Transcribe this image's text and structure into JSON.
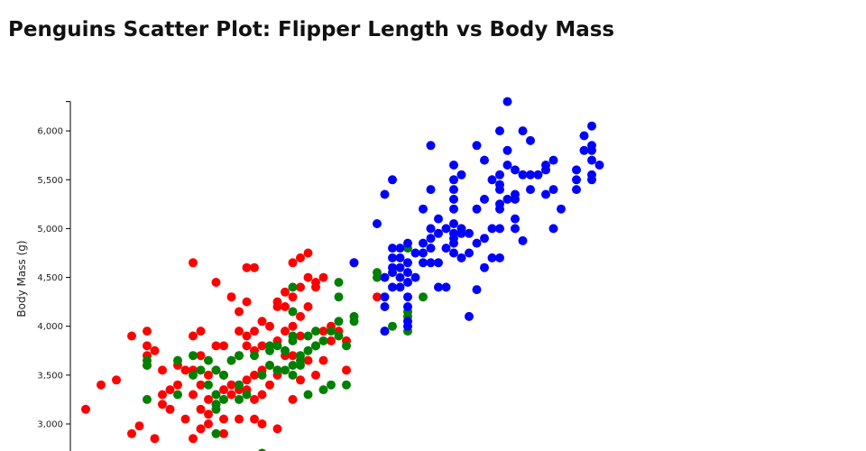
{
  "title": "Penguins Scatter Plot: Flipper Length vs Body Mass",
  "chart_data": {
    "type": "scatter",
    "title": "Penguins Scatter Plot: Flipper Length vs Body Mass",
    "xlabel": "",
    "ylabel": "Body Mass (g)",
    "xlim": [
      168,
      236
    ],
    "ylim": [
      2700,
      6300
    ],
    "y_ticks": [
      3000,
      3500,
      4000,
      4500,
      5000,
      5500,
      6000
    ],
    "y_tick_labels": [
      "3,000",
      "3,500",
      "4,000",
      "4,500",
      "5,000",
      "5,500",
      "6,000"
    ],
    "grid": false,
    "legend": "none",
    "series": [
      {
        "color": "#ff0000",
        "points": [
          [
            170,
            3150
          ],
          [
            172,
            3400
          ],
          [
            174,
            3450
          ],
          [
            176,
            3900
          ],
          [
            176,
            2900
          ],
          [
            177,
            2980
          ],
          [
            178,
            3950
          ],
          [
            178,
            3800
          ],
          [
            178,
            3700
          ],
          [
            178,
            3600
          ],
          [
            179,
            3750
          ],
          [
            179,
            2850
          ],
          [
            180,
            3300
          ],
          [
            180,
            3550
          ],
          [
            180,
            3200
          ],
          [
            181,
            3150
          ],
          [
            181,
            3350
          ],
          [
            182,
            3400
          ],
          [
            182,
            3600
          ],
          [
            183,
            3550
          ],
          [
            183,
            3050
          ],
          [
            184,
            4650
          ],
          [
            184,
            3900
          ],
          [
            184,
            3550
          ],
          [
            184,
            3300
          ],
          [
            184,
            2850
          ],
          [
            185,
            3950
          ],
          [
            185,
            3700
          ],
          [
            185,
            3400
          ],
          [
            185,
            3150
          ],
          [
            185,
            2950
          ],
          [
            186,
            3500
          ],
          [
            186,
            3250
          ],
          [
            186,
            3100
          ],
          [
            186,
            3000
          ],
          [
            187,
            4450
          ],
          [
            187,
            3800
          ],
          [
            187,
            3550
          ],
          [
            187,
            3300
          ],
          [
            187,
            3200
          ],
          [
            188,
            3800
          ],
          [
            188,
            3500
          ],
          [
            188,
            3350
          ],
          [
            188,
            3050
          ],
          [
            188,
            2900
          ],
          [
            189,
            4300
          ],
          [
            189,
            3400
          ],
          [
            189,
            3300
          ],
          [
            190,
            4150
          ],
          [
            190,
            3950
          ],
          [
            190,
            3700
          ],
          [
            190,
            3350
          ],
          [
            190,
            3050
          ],
          [
            191,
            4600
          ],
          [
            191,
            4250
          ],
          [
            191,
            3900
          ],
          [
            191,
            3800
          ],
          [
            191,
            3450
          ],
          [
            191,
            3350
          ],
          [
            192,
            4600
          ],
          [
            192,
            3950
          ],
          [
            192,
            3750
          ],
          [
            192,
            3500
          ],
          [
            192,
            3250
          ],
          [
            192,
            3050
          ],
          [
            193,
            4050
          ],
          [
            193,
            3800
          ],
          [
            193,
            3550
          ],
          [
            193,
            3300
          ],
          [
            193,
            3000
          ],
          [
            194,
            4000
          ],
          [
            194,
            3600
          ],
          [
            194,
            3400
          ],
          [
            195,
            4250
          ],
          [
            195,
            4200
          ],
          [
            195,
            3850
          ],
          [
            195,
            3550
          ],
          [
            195,
            3500
          ],
          [
            195,
            2950
          ],
          [
            196,
            4350
          ],
          [
            196,
            4200
          ],
          [
            196,
            3950
          ],
          [
            196,
            3700
          ],
          [
            197,
            4650
          ],
          [
            197,
            4300
          ],
          [
            197,
            4000
          ],
          [
            197,
            3700
          ],
          [
            197,
            3250
          ],
          [
            198,
            4700
          ],
          [
            198,
            4400
          ],
          [
            198,
            4100
          ],
          [
            198,
            3900
          ],
          [
            198,
            3450
          ],
          [
            199,
            4750
          ],
          [
            199,
            4500
          ],
          [
            199,
            4200
          ],
          [
            199,
            3650
          ],
          [
            200,
            4450
          ],
          [
            200,
            4400
          ],
          [
            200,
            3800
          ],
          [
            200,
            3500
          ],
          [
            201,
            4500
          ],
          [
            201,
            3950
          ],
          [
            201,
            3650
          ],
          [
            202,
            4000
          ],
          [
            202,
            3850
          ],
          [
            203,
            3950
          ],
          [
            204,
            3550
          ],
          [
            204,
            3850
          ],
          [
            205,
            4650
          ],
          [
            208,
            4300
          ]
        ]
      },
      {
        "color": "#008000",
        "points": [
          [
            178,
            3250
          ],
          [
            178,
            3650
          ],
          [
            178,
            3600
          ],
          [
            182,
            3650
          ],
          [
            182,
            3300
          ],
          [
            184,
            3500
          ],
          [
            184,
            3700
          ],
          [
            185,
            3550
          ],
          [
            186,
            3400
          ],
          [
            186,
            3650
          ],
          [
            187,
            3150
          ],
          [
            187,
            3200
          ],
          [
            187,
            2900
          ],
          [
            187,
            3300
          ],
          [
            187,
            3550
          ],
          [
            188,
            3250
          ],
          [
            188,
            3500
          ],
          [
            189,
            3650
          ],
          [
            190,
            3250
          ],
          [
            190,
            3400
          ],
          [
            190,
            3700
          ],
          [
            191,
            3300
          ],
          [
            192,
            3700
          ],
          [
            193,
            2700
          ],
          [
            193,
            3500
          ],
          [
            194,
            3750
          ],
          [
            194,
            3600
          ],
          [
            194,
            3800
          ],
          [
            195,
            3800
          ],
          [
            195,
            3550
          ],
          [
            196,
            3750
          ],
          [
            196,
            3550
          ],
          [
            197,
            3850
          ],
          [
            197,
            3900
          ],
          [
            197,
            3600
          ],
          [
            197,
            3500
          ],
          [
            197,
            4150
          ],
          [
            197,
            4400
          ],
          [
            198,
            3650
          ],
          [
            198,
            3700
          ],
          [
            198,
            3600
          ],
          [
            199,
            3750
          ],
          [
            199,
            3300
          ],
          [
            199,
            3900
          ],
          [
            200,
            3800
          ],
          [
            200,
            3950
          ],
          [
            201,
            3350
          ],
          [
            201,
            3850
          ],
          [
            202,
            3400
          ],
          [
            202,
            3950
          ],
          [
            203,
            4450
          ],
          [
            203,
            4300
          ],
          [
            203,
            3900
          ],
          [
            203,
            4050
          ],
          [
            204,
            3400
          ],
          [
            204,
            3800
          ],
          [
            205,
            4050
          ],
          [
            205,
            4100
          ],
          [
            208,
            4550
          ],
          [
            208,
            4500
          ],
          [
            209,
            3950
          ],
          [
            210,
            4000
          ],
          [
            212,
            4800
          ],
          [
            212,
            4150
          ],
          [
            212,
            4100
          ],
          [
            212,
            3950
          ],
          [
            214,
            4300
          ]
        ]
      },
      {
        "color": "#0000ff",
        "points": [
          [
            205,
            4650
          ],
          [
            208,
            5050
          ],
          [
            209,
            4500
          ],
          [
            209,
            5350
          ],
          [
            209,
            4300
          ],
          [
            209,
            4200
          ],
          [
            209,
            3950
          ],
          [
            210,
            5500
          ],
          [
            210,
            4550
          ],
          [
            210,
            4800
          ],
          [
            210,
            4700
          ],
          [
            210,
            4600
          ],
          [
            210,
            4400
          ],
          [
            211,
            4400
          ],
          [
            211,
            4500
          ],
          [
            211,
            4600
          ],
          [
            211,
            4700
          ],
          [
            211,
            4800
          ],
          [
            212,
            4850
          ],
          [
            212,
            4650
          ],
          [
            212,
            4550
          ],
          [
            212,
            4450
          ],
          [
            212,
            4300
          ],
          [
            212,
            4200
          ],
          [
            212,
            4050
          ],
          [
            212,
            4000
          ],
          [
            213,
            4750
          ],
          [
            213,
            4500
          ],
          [
            214,
            4750
          ],
          [
            214,
            4650
          ],
          [
            214,
            4850
          ],
          [
            214,
            5200
          ],
          [
            215,
            4900
          ],
          [
            215,
            4800
          ],
          [
            215,
            4650
          ],
          [
            215,
            5000
          ],
          [
            215,
            5400
          ],
          [
            215,
            5850
          ],
          [
            216,
            4400
          ],
          [
            216,
            4650
          ],
          [
            216,
            4950
          ],
          [
            216,
            5100
          ],
          [
            217,
            4400
          ],
          [
            217,
            4800
          ],
          [
            217,
            5000
          ],
          [
            218,
            5200
          ],
          [
            218,
            5050
          ],
          [
            218,
            4950
          ],
          [
            218,
            4900
          ],
          [
            218,
            4850
          ],
          [
            218,
            5400
          ],
          [
            218,
            5300
          ],
          [
            218,
            5500
          ],
          [
            218,
            5650
          ],
          [
            218,
            4750
          ],
          [
            219,
            4700
          ],
          [
            219,
            4950
          ],
          [
            219,
            5000
          ],
          [
            219,
            5550
          ],
          [
            220,
            4100
          ],
          [
            220,
            4750
          ],
          [
            220,
            4950
          ],
          [
            221,
            5200
          ],
          [
            221,
            5850
          ],
          [
            221,
            4850
          ],
          [
            221,
            4375
          ],
          [
            222,
            5700
          ],
          [
            222,
            4600
          ],
          [
            222,
            4900
          ],
          [
            222,
            5300
          ],
          [
            223,
            5000
          ],
          [
            223,
            4700
          ],
          [
            223,
            5500
          ],
          [
            224,
            5400
          ],
          [
            224,
            5250
          ],
          [
            224,
            5000
          ],
          [
            224,
            5200
          ],
          [
            224,
            5450
          ],
          [
            224,
            5550
          ],
          [
            224,
            4700
          ],
          [
            224,
            6000
          ],
          [
            225,
            5300
          ],
          [
            225,
            5650
          ],
          [
            225,
            5800
          ],
          [
            225,
            6300
          ],
          [
            226,
            5300
          ],
          [
            226,
            5100
          ],
          [
            226,
            5000
          ],
          [
            226,
            5350
          ],
          [
            226,
            5600
          ],
          [
            227,
            5550
          ],
          [
            227,
            4875
          ],
          [
            227,
            6000
          ],
          [
            228,
            5400
          ],
          [
            228,
            5900
          ],
          [
            228,
            5550
          ],
          [
            229,
            5550
          ],
          [
            230,
            5350
          ],
          [
            230,
            5650
          ],
          [
            230,
            5600
          ],
          [
            231,
            5700
          ],
          [
            231,
            5400
          ],
          [
            231,
            5000
          ],
          [
            232,
            5200
          ],
          [
            234,
            5600
          ],
          [
            234,
            5500
          ],
          [
            234,
            5400
          ],
          [
            235,
            5950
          ],
          [
            235,
            5800
          ],
          [
            236,
            6050
          ],
          [
            236,
            5850
          ],
          [
            236,
            5800
          ],
          [
            236,
            5700
          ],
          [
            236,
            5550
          ],
          [
            236,
            5500
          ],
          [
            237,
            5650
          ]
        ]
      }
    ]
  }
}
